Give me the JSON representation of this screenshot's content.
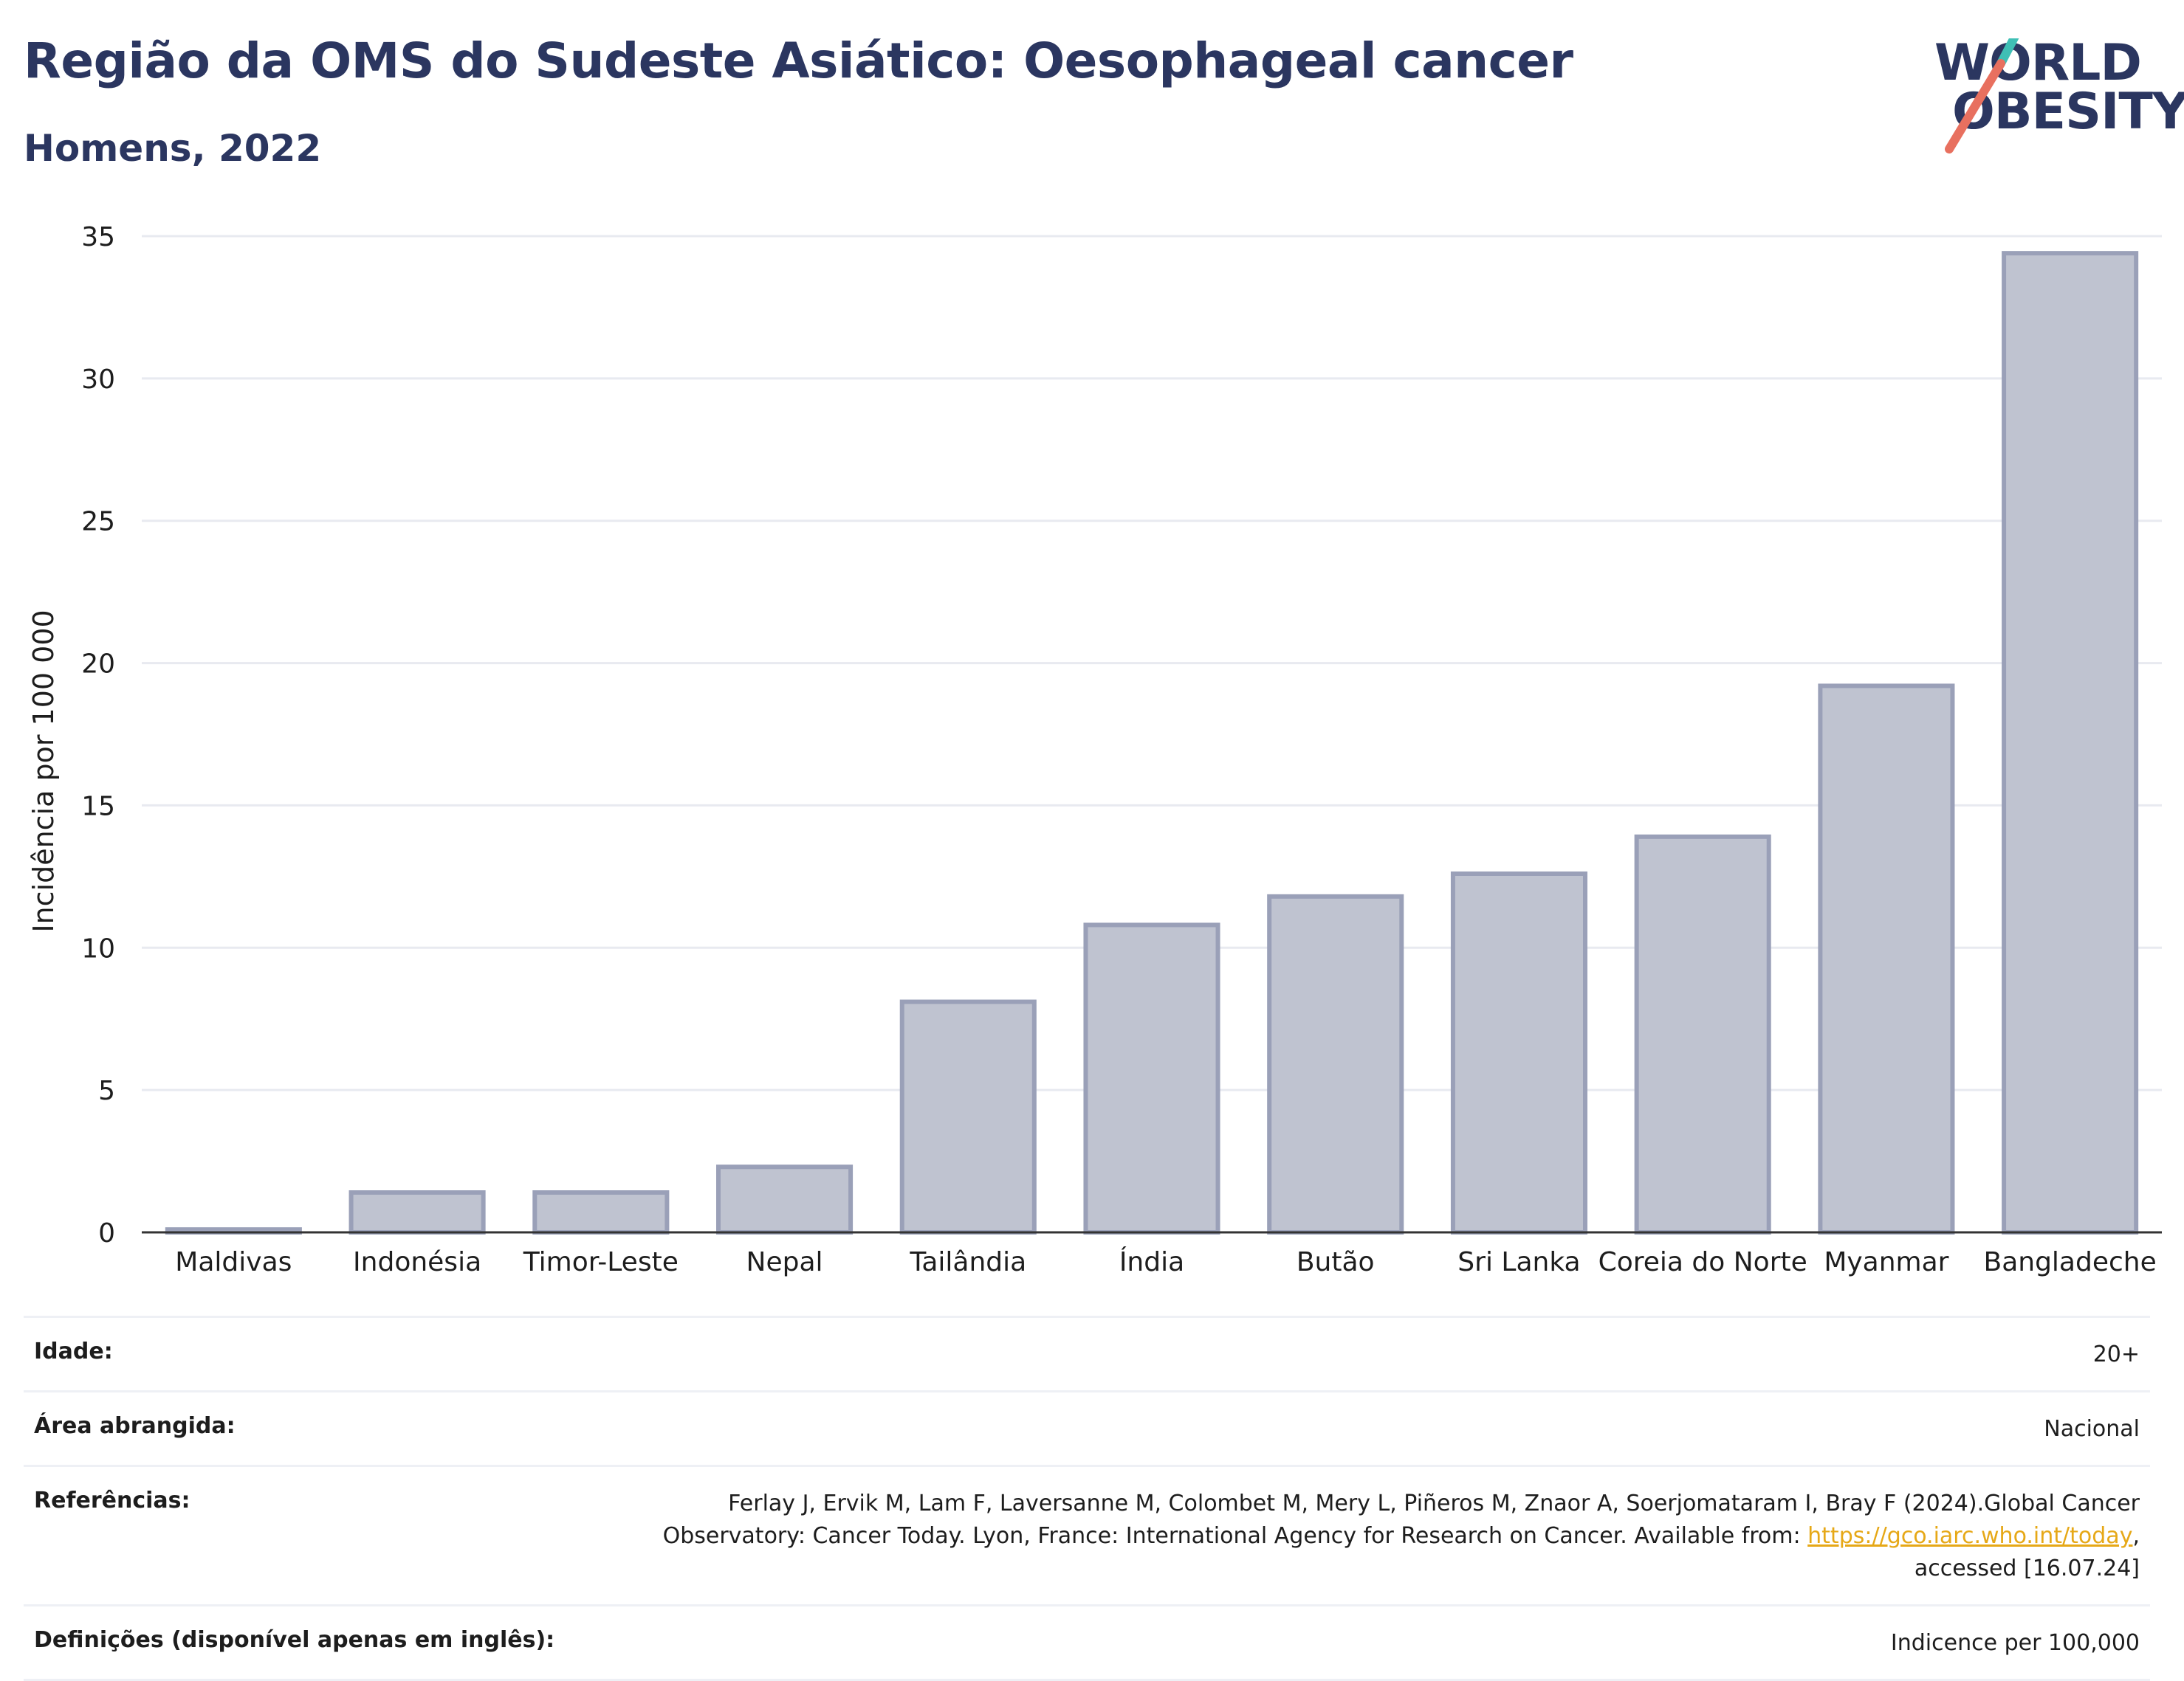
{
  "header": {
    "title": "Região da OMS do Sudeste Asiático: Oesophageal cancer",
    "subtitle": "Homens, 2022"
  },
  "logo": {
    "line1": "WORLD",
    "line2": "OBESITY"
  },
  "colors": {
    "bar_fill": "#bfc3d0",
    "bar_stroke": "#9aa0b8",
    "title": "#2b3660",
    "grid": "#e8eaf0",
    "accent_teal": "#3fbfb5",
    "accent_coral": "#e8705f",
    "link": "#e6a817"
  },
  "chart_data": {
    "type": "bar",
    "title": "Região da OMS do Sudeste Asiático: Oesophageal cancer",
    "subtitle": "Homens, 2022",
    "ylabel": "Incidência por 100 000",
    "xlabel": "",
    "ylim": [
      0,
      35
    ],
    "yticks": [
      0,
      5,
      10,
      15,
      20,
      25,
      30,
      35
    ],
    "grid": true,
    "categories": [
      "Maldivas",
      "Indonésia",
      "Timor-Leste",
      "Nepal",
      "Tailândia",
      "Índia",
      "Butão",
      "Sri Lanka",
      "Coreia do Norte",
      "Myanmar",
      "Bangladeche"
    ],
    "values": [
      0.1,
      1.4,
      1.4,
      2.3,
      8.1,
      10.8,
      11.8,
      12.6,
      13.9,
      19.2,
      34.4
    ]
  },
  "meta": {
    "age_label": "Idade:",
    "age_value": "20+",
    "area_label": "Área abrangida:",
    "area_value": "Nacional",
    "ref_label": "Referências:",
    "ref_text_1": "Ferlay J, Ervik M, Lam F, Laversanne M, Colombet M, Mery L, Piñeros M, Znaor A, Soerjomataram I, Bray F (2024).Global Cancer",
    "ref_text_2": "Observatory: Cancer Today. Lyon, France: International Agency for Research on Cancer. Available from: ",
    "ref_link": "https://gco.iarc.who.int/today",
    "ref_text_3": ",",
    "ref_text_4": "accessed [16.07.24]",
    "def_label": "Definições (disponível apenas em inglês):",
    "def_value": "Indicence per 100,000"
  }
}
